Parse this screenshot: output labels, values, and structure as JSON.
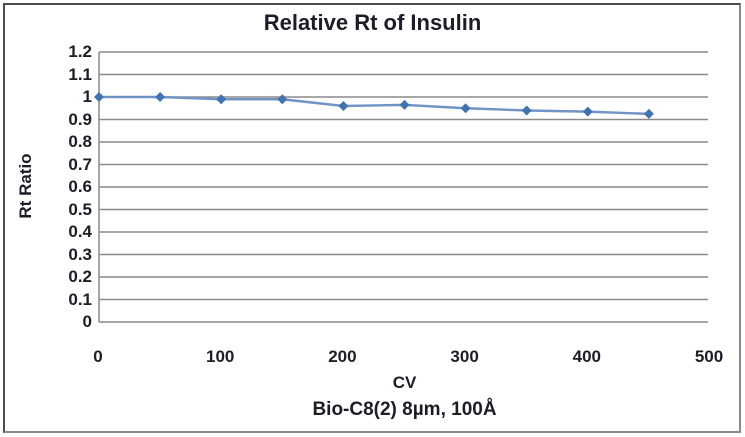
{
  "chart_data": {
    "type": "line",
    "title": "Relative Rt of Insulin",
    "xlabel": "CV",
    "xlabel_sub": "Bio-C8(2) 8µm, 100Å",
    "ylabel": "Rt Ratio",
    "x": [
      0,
      50,
      100,
      150,
      200,
      250,
      300,
      350,
      400,
      450
    ],
    "series": [
      {
        "name": "Rt Ratio",
        "values": [
          1.0,
          1.0,
          0.99,
          0.99,
          0.96,
          0.965,
          0.95,
          0.94,
          0.935,
          0.925
        ]
      }
    ],
    "xlim": [
      0,
      500
    ],
    "ylim": [
      0,
      1.2
    ],
    "x_ticks": [
      0,
      100,
      200,
      300,
      400,
      500
    ],
    "x_tick_labels": [
      "0",
      "100",
      "200",
      "300",
      "400",
      "500"
    ],
    "y_ticks": [
      0,
      0.1,
      0.2,
      0.3,
      0.4,
      0.5,
      0.6,
      0.7,
      0.8,
      0.9,
      1.0,
      1.1,
      1.2
    ],
    "y_tick_labels": [
      "0",
      "0.1",
      "0.2",
      "0.3",
      "0.4",
      "0.5",
      "0.6",
      "0.7",
      "0.8",
      "0.9",
      "1",
      "1.1",
      "1.2"
    ],
    "grid": "horizontal",
    "legend_position": "none",
    "marker": "diamond",
    "colors": {
      "line": "#7094c6",
      "marker": "#4173ae",
      "grid": "#8a8a8a",
      "axis": "#8a8a8a",
      "text": "#1b1e27",
      "frame_border": "#4e4e50",
      "background": "#ffffff"
    }
  }
}
